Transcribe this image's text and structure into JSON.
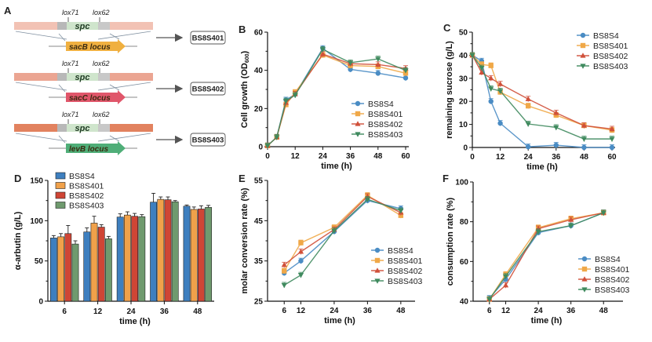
{
  "figure": {
    "panel_a": {
      "letter": "A",
      "constructs": [
        {
          "lox_left": "lox71",
          "lox_right": "lox62",
          "marker": "spc",
          "locus": "sacB locus",
          "strain": "BS8S401",
          "flank_color": "#f2c2b4",
          "locus_color": "#f0b040"
        },
        {
          "lox_left": "lox71",
          "lox_right": "lox62",
          "marker": "spc",
          "locus": "sacC locus",
          "strain": "BS8S402",
          "flank_color": "#eba592",
          "locus_color": "#e0566a"
        },
        {
          "lox_left": "lox71",
          "lox_right": "lox62",
          "marker": "spc",
          "locus": "levB locus",
          "strain": "BS8S403",
          "flank_color": "#e2825f",
          "locus_color": "#4fae78"
        }
      ]
    },
    "series_styles": [
      {
        "name": "BS8S4",
        "color": "#4a8cc4",
        "marker": "circle"
      },
      {
        "name": "BS8S401",
        "color": "#f0a848",
        "marker": "square"
      },
      {
        "name": "BS8S402",
        "color": "#d0503a",
        "marker": "triangle-up"
      },
      {
        "name": "BS8S403",
        "color": "#3f8a5e",
        "marker": "triangle-down"
      }
    ]
  },
  "chart_data": [
    {
      "panel": "B",
      "type": "line",
      "title": "",
      "xlabel": "time (h)",
      "ylabel": "Cell growth (OD600)",
      "ylabel_main": "Cell growth (OD",
      "ylabel_sub": "600",
      "ylabel_close": ")",
      "x": [
        0,
        4,
        8,
        12,
        24,
        36,
        48,
        60
      ],
      "xticks": [
        "0",
        "12",
        "24",
        "36",
        "48",
        "60"
      ],
      "xtick_values": [
        0,
        12,
        24,
        36,
        48,
        60
      ],
      "xlim": [
        0,
        60
      ],
      "ylim": [
        0,
        60
      ],
      "yticks": [
        0,
        20,
        40,
        60
      ],
      "legend": "bottom-right",
      "series": [
        {
          "name": "BS8S4",
          "values": [
            0.5,
            5,
            24.5,
            27.5,
            51.5,
            40.5,
            38.5,
            36
          ]
        },
        {
          "name": "BS8S401",
          "values": [
            0.5,
            5,
            22,
            28.5,
            48,
            42.5,
            42,
            38.5
          ]
        },
        {
          "name": "BS8S402",
          "values": [
            0.5,
            5,
            23,
            27.5,
            48.5,
            43.5,
            43,
            41
          ]
        },
        {
          "name": "BS8S403",
          "values": [
            0.5,
            5,
            24,
            27,
            51,
            44,
            46,
            40
          ]
        }
      ]
    },
    {
      "panel": "C",
      "type": "line",
      "title": "",
      "xlabel": "time (h)",
      "ylabel": "remaining sucrose (g/L)",
      "x": [
        0,
        4,
        8,
        12,
        24,
        36,
        48,
        60
      ],
      "xticks": [
        "0",
        "12",
        "24",
        "36",
        "48",
        "60"
      ],
      "xtick_values": [
        0,
        12,
        24,
        36,
        48,
        60
      ],
      "xlim": [
        0,
        60
      ],
      "ylim": [
        0,
        50
      ],
      "yticks": [
        0,
        10,
        20,
        30,
        40,
        50
      ],
      "legend": "top-right",
      "series": [
        {
          "name": "BS8S4",
          "values": [
            40,
            37.5,
            20,
            10.5,
            0.3,
            1,
            0,
            0
          ]
        },
        {
          "name": "BS8S401",
          "values": [
            40,
            36,
            35.5,
            24,
            18,
            14,
            9.5,
            7.5
          ]
        },
        {
          "name": "BS8S402",
          "values": [
            40,
            32.5,
            30,
            27.5,
            21,
            15,
            9.5,
            8
          ]
        },
        {
          "name": "BS8S403",
          "values": [
            40,
            34.5,
            25.5,
            24.5,
            10.2,
            8.7,
            3.7,
            3.7
          ]
        }
      ]
    },
    {
      "panel": "D",
      "type": "bar",
      "title": "",
      "xlabel": "time (h)",
      "ylabel": "α-arbutin (g/L)",
      "categories": [
        "6",
        "12",
        "24",
        "36",
        "48"
      ],
      "ylim": [
        0,
        150
      ],
      "yticks": [
        0,
        50,
        100,
        150
      ],
      "legend": "top-left",
      "series": [
        {
          "name": "BS8S4",
          "color": "#3e7fbf",
          "values": [
            78.5,
            86,
            104.5,
            123,
            118
          ],
          "errors": [
            3,
            5,
            4,
            11,
            1.5
          ]
        },
        {
          "name": "BS8S401",
          "color": "#f0a14a",
          "values": [
            80,
            97,
            107,
            126.5,
            114
          ],
          "errors": [
            4,
            8.5,
            4,
            3,
            3
          ]
        },
        {
          "name": "BS8S402",
          "color": "#cf4535",
          "values": [
            84,
            92,
            105.5,
            126,
            114.5
          ],
          "errors": [
            10,
            3,
            3.5,
            3.5,
            4
          ]
        },
        {
          "name": "BS8S403",
          "color": "#6f9a6e",
          "values": [
            71,
            77.5,
            105,
            123.5,
            116.5
          ],
          "errors": [
            4,
            3,
            2.5,
            1.5,
            2.5
          ]
        }
      ]
    },
    {
      "panel": "E",
      "type": "line",
      "title": "",
      "xlabel": "time (h)",
      "ylabel": "molar conversion rate (%)",
      "x": [
        6,
        12,
        24,
        36,
        48
      ],
      "xticks": [
        "6",
        "12",
        "24",
        "36",
        "48"
      ],
      "xtick_values": [
        6,
        12,
        24,
        36,
        48
      ],
      "xlim": [
        0,
        52
      ],
      "ylim": [
        25,
        55
      ],
      "yticks": [
        25,
        35,
        45,
        55
      ],
      "legend": "bottom-right",
      "series": [
        {
          "name": "BS8S4",
          "values": [
            32,
            35,
            42.3,
            50,
            48
          ]
        },
        {
          "name": "BS8S401",
          "values": [
            32.5,
            39.5,
            43.3,
            51.3,
            46.3
          ]
        },
        {
          "name": "BS8S402",
          "values": [
            34,
            37.3,
            42.8,
            51,
            47
          ]
        },
        {
          "name": "BS8S403",
          "values": [
            29,
            31.5,
            42.5,
            50.3,
            47.5
          ]
        }
      ]
    },
    {
      "panel": "F",
      "type": "line",
      "title": "",
      "xlabel": "time (h)",
      "ylabel": "consumption rate (%)",
      "x": [
        6,
        12,
        24,
        36,
        48
      ],
      "xticks": [
        "6",
        "12",
        "24",
        "36",
        "48"
      ],
      "xtick_values": [
        6,
        12,
        24,
        36,
        48
      ],
      "xlim": [
        0,
        54
      ],
      "ylim": [
        40,
        100
      ],
      "yticks": [
        40,
        60,
        80,
        100
      ],
      "legend": "bottom-right",
      "series": [
        {
          "name": "BS8S4",
          "values": [
            41.5,
            51,
            74.5,
            78,
            84.5
          ]
        },
        {
          "name": "BS8S401",
          "values": [
            41,
            53.5,
            77,
            81.5,
            84.5
          ]
        },
        {
          "name": "BS8S402",
          "values": [
            41,
            48,
            76.5,
            81,
            84.5
          ]
        },
        {
          "name": "BS8S403",
          "values": [
            41,
            52.5,
            75,
            78,
            84.5
          ]
        }
      ]
    }
  ]
}
